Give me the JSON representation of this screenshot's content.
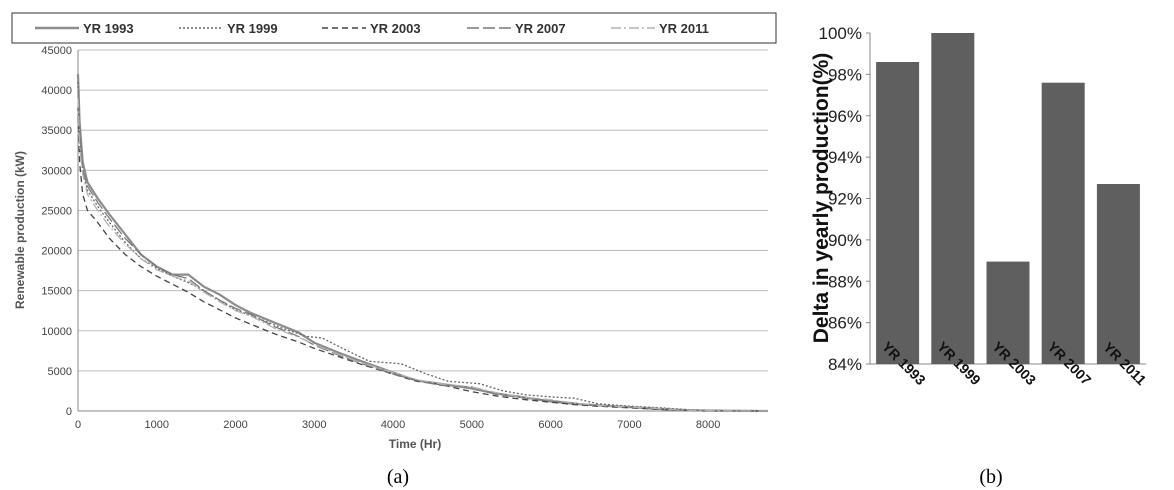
{
  "panel_a": {
    "caption": "(a)",
    "legend": [
      "YR 1993",
      "YR 1999",
      "YR 2003",
      "YR 2007",
      "YR 2011"
    ]
  },
  "panel_b": {
    "caption": "(b)"
  },
  "chart_data": [
    {
      "type": "line",
      "title": "",
      "xlabel": "Time (Hr)",
      "ylabel": "Renewable production (kW)",
      "xlim": [
        0,
        8760
      ],
      "ylim": [
        0,
        45000
      ],
      "xticks": [
        0,
        1000,
        2000,
        3000,
        4000,
        5000,
        6000,
        7000,
        8000
      ],
      "yticks": [
        0,
        5000,
        10000,
        15000,
        20000,
        25000,
        30000,
        35000,
        40000,
        45000
      ],
      "grid": true,
      "legend_position": "top",
      "series": [
        {
          "name": "YR 1993",
          "color": "#8c8c8c",
          "style": "solid",
          "x": [
            0,
            20,
            60,
            120,
            250,
            400,
            600,
            800,
            1000,
            1200,
            1400,
            1600,
            1800,
            2000,
            2200,
            2500,
            2800,
            3000,
            3300,
            3600,
            4000,
            4300,
            4600,
            5000,
            5300,
            5600,
            6000,
            6300,
            6600,
            7000,
            7300,
            7600,
            8000,
            8760
          ],
          "values": [
            42000,
            36000,
            31000,
            28500,
            26500,
            24500,
            22000,
            19500,
            18000,
            17000,
            17000,
            15500,
            14500,
            13200,
            12200,
            11000,
            9800,
            8500,
            7300,
            6200,
            4800,
            3800,
            3400,
            2800,
            2200,
            1800,
            1200,
            900,
            700,
            500,
            300,
            150,
            50,
            0
          ]
        },
        {
          "name": "YR 1999",
          "color": "#666666",
          "style": "dotted",
          "x": [
            0,
            20,
            60,
            120,
            250,
            400,
            600,
            800,
            1000,
            1200,
            1400,
            1600,
            1800,
            2000,
            2300,
            2600,
            2900,
            3100,
            3400,
            3700,
            4100,
            4400,
            4700,
            5100,
            5400,
            5700,
            6100,
            6300,
            6600,
            7000,
            7400,
            7700,
            8000,
            8760
          ],
          "values": [
            41000,
            34000,
            30000,
            27500,
            25500,
            23500,
            21000,
            19000,
            17800,
            16800,
            16000,
            15000,
            13800,
            12600,
            11500,
            10300,
            9300,
            9100,
            7600,
            6200,
            5900,
            4700,
            3700,
            3400,
            2500,
            2000,
            1700,
            1600,
            900,
            600,
            400,
            200,
            80,
            0
          ]
        },
        {
          "name": "YR 2003",
          "color": "#444444",
          "style": "dashed",
          "x": [
            0,
            20,
            60,
            120,
            250,
            400,
            600,
            800,
            1000,
            1200,
            1400,
            1600,
            1800,
            2000,
            2200,
            2500,
            2800,
            3000,
            3300,
            3600,
            4000,
            4300,
            4600,
            5000,
            5300,
            5600,
            6000,
            6300,
            6600,
            7000,
            7300,
            7600,
            8000,
            8760
          ],
          "values": [
            38000,
            31000,
            27000,
            25000,
            23500,
            21500,
            19500,
            18000,
            16800,
            15800,
            14800,
            13600,
            12600,
            11600,
            10800,
            9600,
            8600,
            7800,
            6800,
            5800,
            4600,
            3700,
            3300,
            2400,
            1900,
            1500,
            1100,
            800,
            600,
            400,
            250,
            100,
            30,
            0
          ]
        },
        {
          "name": "YR 2007",
          "color": "#7a7a7a",
          "style": "longdash",
          "x": [
            0,
            20,
            60,
            120,
            250,
            400,
            600,
            800,
            1000,
            1200,
            1400,
            1600,
            1800,
            2000,
            2200,
            2500,
            2800,
            3000,
            3300,
            3600,
            4000,
            4300,
            4600,
            5000,
            5300,
            5600,
            6000,
            6300,
            6600,
            7000,
            7300,
            7600,
            8000,
            8760
          ],
          "values": [
            40000,
            35000,
            30000,
            28000,
            26000,
            24000,
            21500,
            19500,
            18000,
            17000,
            16500,
            15000,
            13800,
            12800,
            12000,
            10500,
            9300,
            8200,
            7000,
            5900,
            4600,
            3800,
            3200,
            3000,
            2100,
            1700,
            1300,
            1000,
            700,
            500,
            400,
            200,
            60,
            0
          ]
        },
        {
          "name": "YR 2011",
          "color": "#b3b3b3",
          "style": "dashdot",
          "x": [
            0,
            20,
            60,
            120,
            250,
            400,
            600,
            800,
            1000,
            1200,
            1400,
            1600,
            1800,
            2000,
            2200,
            2500,
            2800,
            3000,
            3300,
            3600,
            4000,
            4300,
            4600,
            5000,
            5300,
            5600,
            6000,
            6300,
            6600,
            7000,
            7300,
            7600,
            8000,
            8760
          ],
          "values": [
            39000,
            33000,
            29500,
            27000,
            25000,
            23000,
            20800,
            19000,
            17600,
            16800,
            16200,
            14800,
            13600,
            12500,
            11800,
            10300,
            9200,
            8300,
            7100,
            6000,
            4800,
            3900,
            3400,
            3000,
            2300,
            1800,
            1400,
            1000,
            700,
            500,
            350,
            150,
            50,
            0
          ]
        }
      ]
    },
    {
      "type": "bar",
      "title": "",
      "xlabel": "",
      "ylabel": "Delta in yearly production(%)",
      "categories": [
        "YR 1993",
        "YR 1999",
        "YR 2003",
        "YR 2007",
        "YR 2011"
      ],
      "values": [
        98.6,
        100,
        88.95,
        97.6,
        92.7
      ],
      "ylim": [
        84,
        100
      ],
      "yticks": [
        "84%",
        "86%",
        "88%",
        "90%",
        "92%",
        "94%",
        "96%",
        "98%",
        "100%"
      ],
      "bar_color": "#5f5f5f",
      "grid": false
    }
  ]
}
